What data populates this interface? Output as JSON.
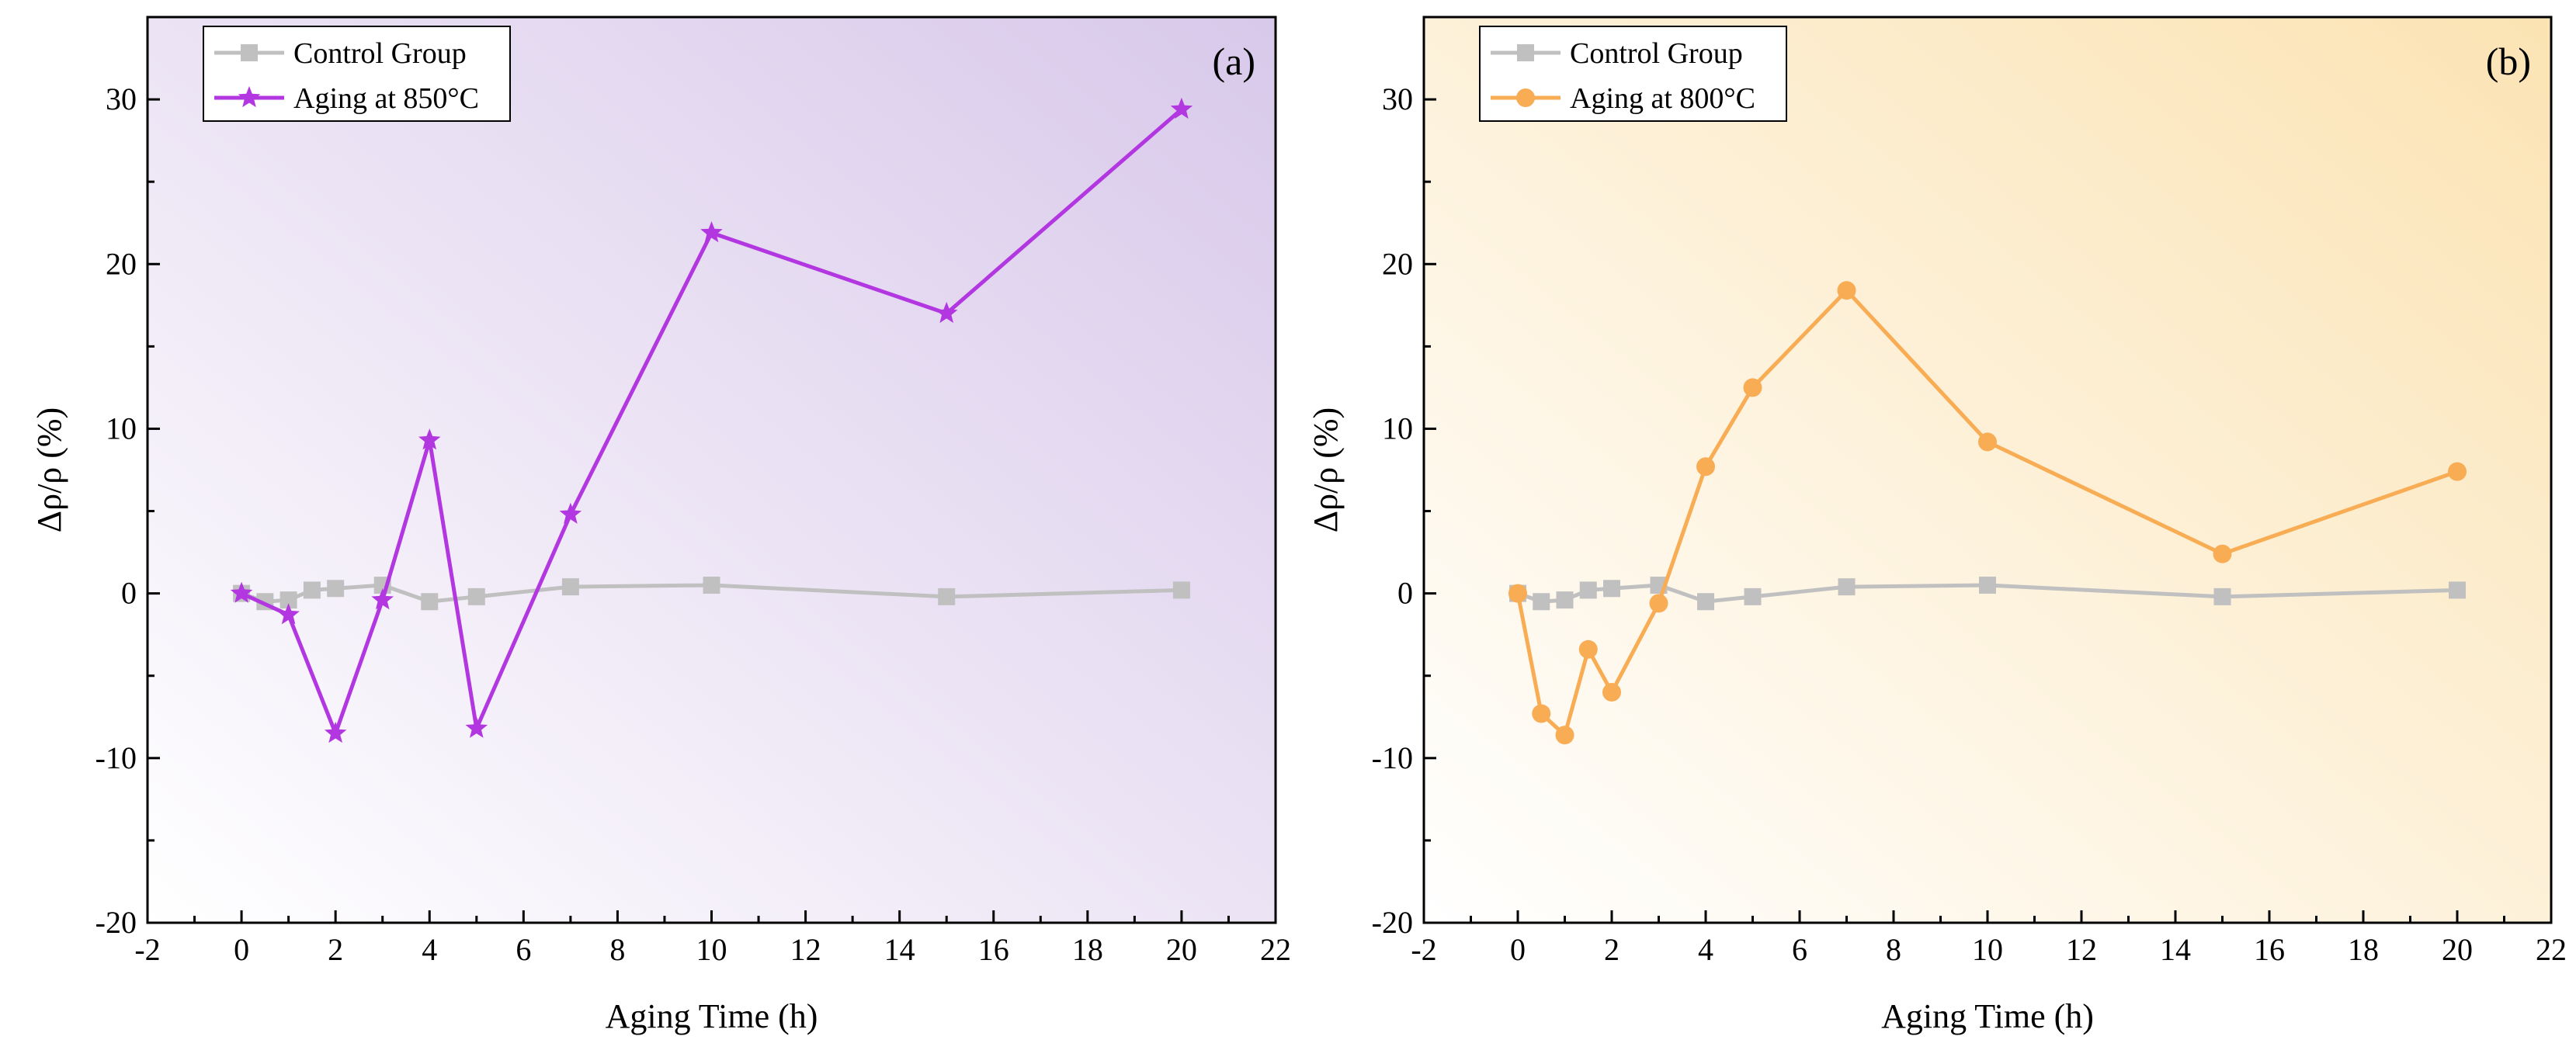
{
  "figure": {
    "panels": [
      {
        "panel_label": "(a)"
      },
      {
        "panel_label": "(b)"
      }
    ]
  },
  "chart_data": [
    {
      "type": "line",
      "panel_label": "(a)",
      "xlabel": "Aging Time (h)",
      "ylabel": "Δρ/ρ (%)",
      "xlim": [
        -2,
        22
      ],
      "ylim": [
        -20,
        35
      ],
      "xticks": [
        "-2",
        "0",
        "2",
        "4",
        "6",
        "8",
        "10",
        "12",
        "14",
        "16",
        "18",
        "20",
        "22"
      ],
      "yticks": [
        "-20",
        "-10",
        "0",
        "10",
        "20",
        "30"
      ],
      "background_gradient": [
        "#ffffff",
        "#d8c8ea"
      ],
      "legend": "top-left",
      "series": [
        {
          "name": "Control Group",
          "color": "#c0c0c0",
          "marker": "square",
          "x": [
            0,
            0.5,
            1,
            1.5,
            2,
            3,
            4,
            5,
            7,
            10,
            15,
            20
          ],
          "y": [
            0,
            -0.5,
            -0.4,
            0.2,
            0.3,
            0.5,
            -0.5,
            -0.2,
            0.4,
            0.5,
            -0.2,
            0.2
          ]
        },
        {
          "name": "Aging at 850°C",
          "color": "#b237e0",
          "marker": "star",
          "x": [
            0,
            1,
            2,
            3,
            4,
            5,
            7,
            10,
            15,
            20
          ],
          "y": [
            0,
            -1.3,
            -8.5,
            -0.4,
            9.3,
            -8.2,
            4.8,
            21.9,
            17.0,
            29.4
          ]
        }
      ]
    },
    {
      "type": "line",
      "panel_label": "(b)",
      "xlabel": "Aging Time (h)",
      "ylabel": "Δρ/ρ (%)",
      "xlim": [
        -2,
        22
      ],
      "ylim": [
        -20,
        35
      ],
      "xticks": [
        "-2",
        "0",
        "2",
        "4",
        "6",
        "8",
        "10",
        "12",
        "14",
        "16",
        "18",
        "20",
        "22"
      ],
      "yticks": [
        "-20",
        "-10",
        "0",
        "10",
        "20",
        "30"
      ],
      "background_gradient": [
        "#ffffff",
        "#fbe3b3"
      ],
      "legend": "top-left",
      "series": [
        {
          "name": "Control Group",
          "color": "#c0c0c0",
          "marker": "square",
          "x": [
            0,
            0.5,
            1,
            1.5,
            2,
            3,
            4,
            5,
            7,
            10,
            15,
            20
          ],
          "y": [
            0,
            -0.5,
            -0.4,
            0.2,
            0.3,
            0.5,
            -0.5,
            -0.2,
            0.4,
            0.5,
            -0.2,
            0.2
          ]
        },
        {
          "name": "Aging at 800°C",
          "color": "#f8ac54",
          "marker": "circle",
          "x": [
            0,
            0.5,
            1,
            1.5,
            2,
            3,
            4,
            5,
            7,
            10,
            15,
            20
          ],
          "y": [
            0,
            -7.3,
            -8.6,
            -3.4,
            -6.0,
            -0.6,
            7.7,
            12.5,
            18.4,
            9.2,
            2.4,
            7.4
          ]
        }
      ]
    }
  ]
}
